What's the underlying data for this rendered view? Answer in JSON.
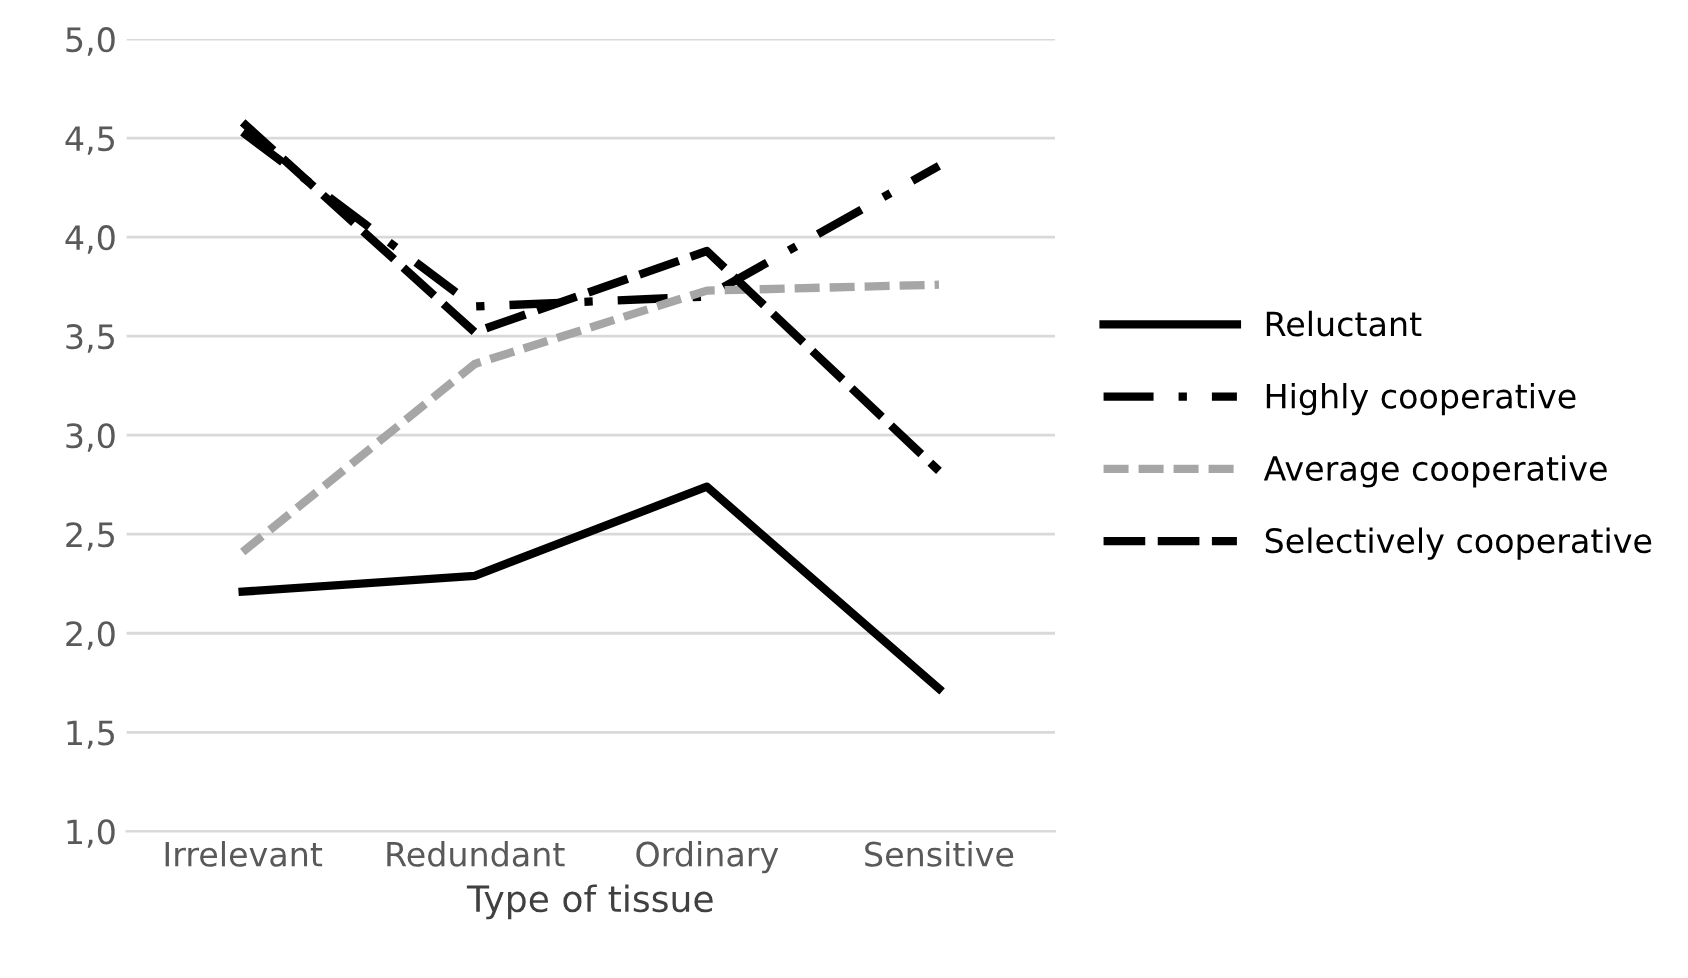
{
  "chart_data": {
    "type": "line",
    "xlabel": "Type of tissue",
    "categories": [
      "Irrelevant",
      "Redundant",
      "Ordinary",
      "Sensitive"
    ],
    "ylim": [
      1.0,
      5.0
    ],
    "yticks": [
      {
        "value": 1.0,
        "label": "1,0"
      },
      {
        "value": 1.5,
        "label": "1,5"
      },
      {
        "value": 2.0,
        "label": "2,0"
      },
      {
        "value": 2.5,
        "label": "2,5"
      },
      {
        "value": 3.0,
        "label": "3,0"
      },
      {
        "value": 3.5,
        "label": "3,5"
      },
      {
        "value": 4.0,
        "label": "4,0"
      },
      {
        "value": 4.5,
        "label": "4,5"
      },
      {
        "value": 5.0,
        "label": "5,0"
      }
    ],
    "grid": "y",
    "legend": "right",
    "marker": "none",
    "series": [
      {
        "name": "Reluctant",
        "color": "#000000",
        "line_style": "solid",
        "values": [
          2.21,
          2.29,
          2.74,
          1.72
        ]
      },
      {
        "name": "Highly cooperative",
        "color": "#000000",
        "line_style": "dashdot",
        "values": [
          4.53,
          3.65,
          3.7,
          4.36
        ]
      },
      {
        "name": "Average cooperative",
        "color": "#a6a6a6",
        "line_style": "dashed",
        "values": [
          2.41,
          3.36,
          3.73,
          3.76
        ]
      },
      {
        "name": "Selectively cooperative",
        "color": "#000000",
        "line_style": "longdash",
        "values": [
          4.58,
          3.52,
          3.93,
          2.82
        ]
      }
    ]
  }
}
